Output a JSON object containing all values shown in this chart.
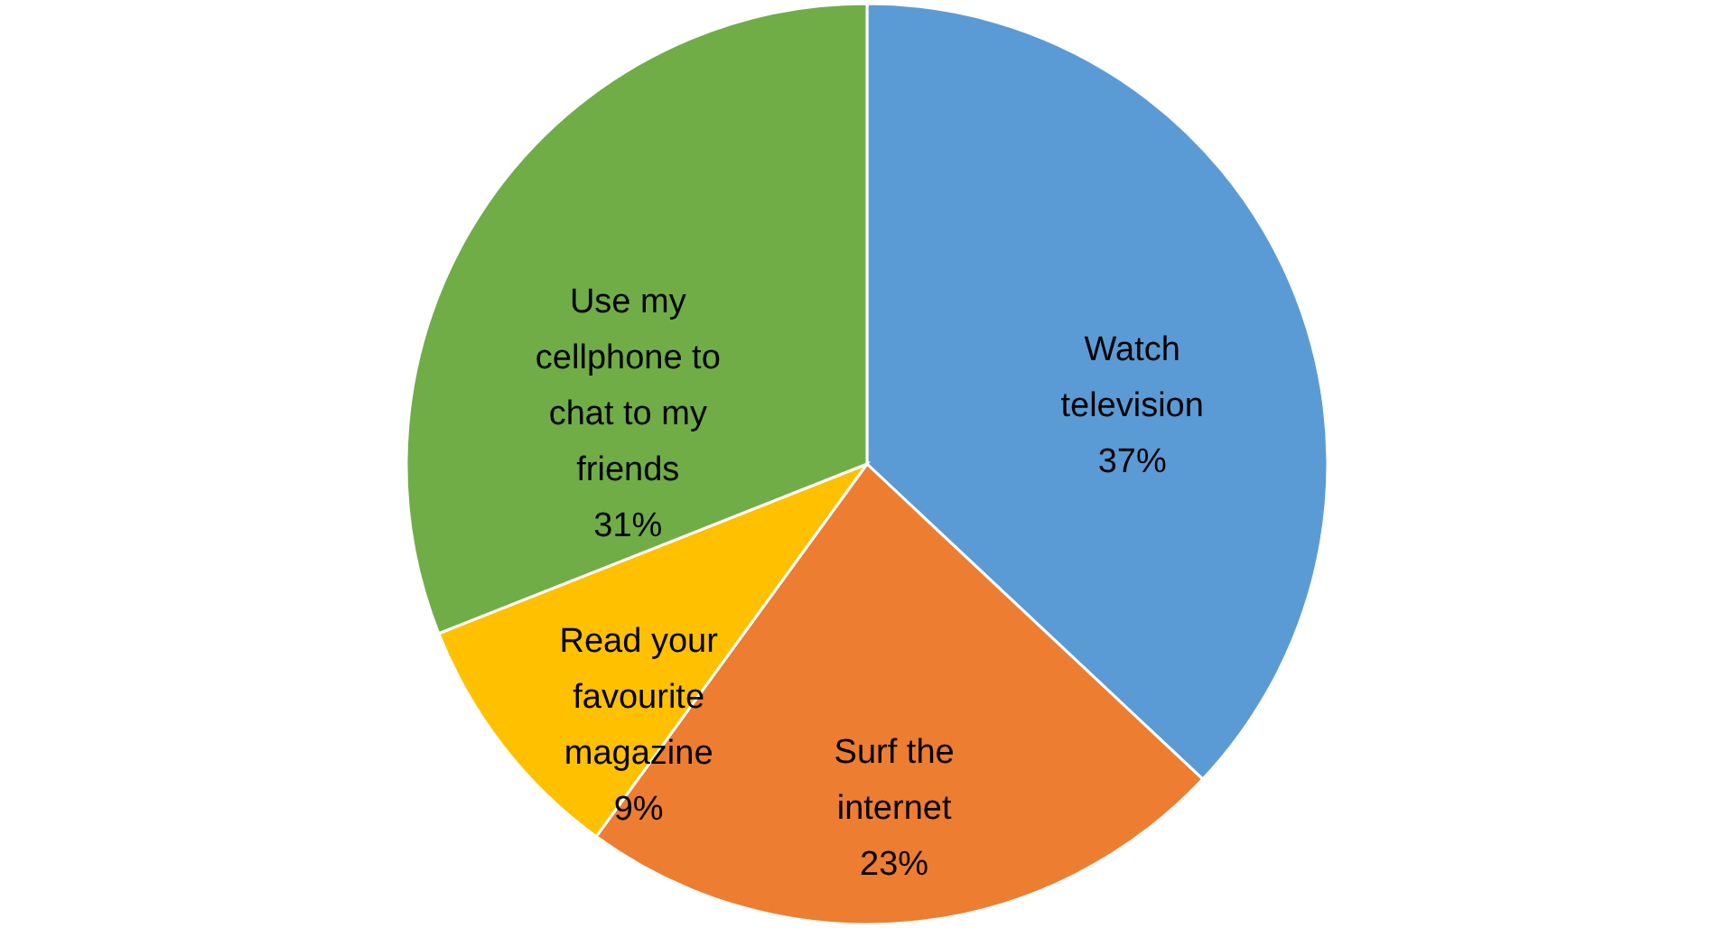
{
  "chart_data": {
    "type": "pie",
    "categories": [
      "Watch television",
      "Surf the internet",
      "Read your favourite magazine",
      "Use my cellphone to chat to my friends"
    ],
    "values": [
      37,
      23,
      9,
      31
    ],
    "value_labels": [
      "37%",
      "23%",
      "9%",
      "31%"
    ],
    "colors": [
      "#5b9bd5",
      "#ed7d31",
      "#ffc000",
      "#70ad47"
    ]
  }
}
